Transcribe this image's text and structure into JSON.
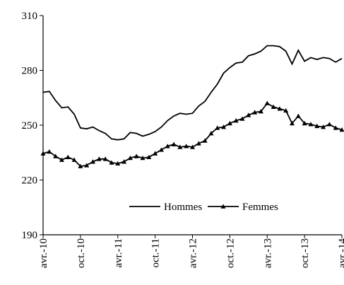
{
  "chart_data": {
    "type": "line",
    "categories": [
      "avr.-10",
      null,
      null,
      null,
      null,
      null,
      "oct.-10",
      null,
      null,
      null,
      null,
      null,
      "avr.-11",
      null,
      null,
      null,
      null,
      null,
      "oct.-11",
      null,
      null,
      null,
      null,
      null,
      "avr.-12",
      null,
      null,
      null,
      null,
      null,
      "oct.-12",
      null,
      null,
      null,
      null,
      null,
      "avr.-13",
      null,
      null,
      null,
      null,
      null,
      "oct.-13",
      null,
      null,
      null,
      null,
      null,
      "avr.-14"
    ],
    "series": [
      {
        "name": "Hommes",
        "color": "#000000",
        "marker": "none",
        "values": [
          268,
          268.5,
          263.5,
          259.5,
          260,
          256,
          248.5,
          248,
          249,
          247,
          245.5,
          242.5,
          242,
          242.5,
          246,
          245.5,
          244,
          245,
          246.5,
          249,
          252.5,
          255,
          256.5,
          256,
          256.5,
          260.5,
          263,
          268,
          272.5,
          278.5,
          281.5,
          284,
          284.5,
          288,
          289,
          290.5,
          293.5,
          293.5,
          293,
          290.5,
          283.5,
          291,
          285,
          287,
          286,
          287,
          286.5,
          284.5,
          286.5
        ]
      },
      {
        "name": "Femmes",
        "color": "#000000",
        "marker": "triangle",
        "values": [
          234.5,
          235.5,
          233,
          231,
          232.5,
          231,
          227.5,
          228,
          230,
          231.5,
          231.5,
          229.5,
          229,
          230,
          232,
          233,
          232,
          232.5,
          234.5,
          236.5,
          238.5,
          239.5,
          238,
          238.5,
          238,
          240,
          241.5,
          245.5,
          248.5,
          249,
          251,
          252.5,
          253.5,
          255.5,
          257,
          257.5,
          262,
          260,
          259,
          258,
          251,
          255,
          251,
          250.5,
          249.5,
          249,
          250.5,
          248.5,
          247.5
        ]
      }
    ],
    "ylim": [
      190,
      310
    ],
    "yticks": [
      190,
      220,
      250,
      280,
      310
    ],
    "grid": false,
    "legend": "bottom"
  }
}
